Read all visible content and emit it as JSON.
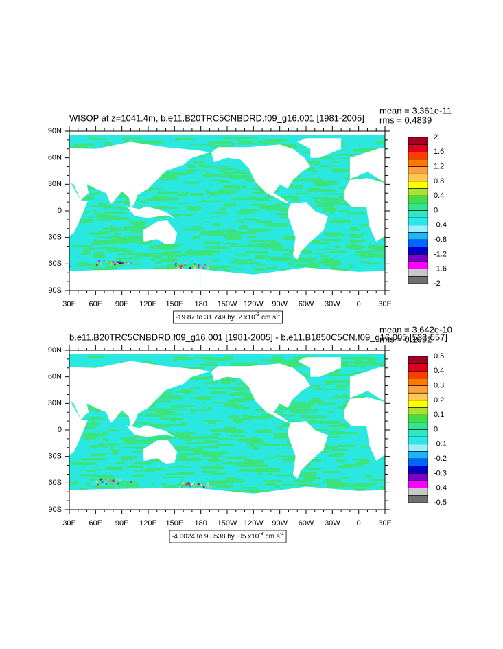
{
  "panels": [
    {
      "title": "WISOP at z=1041.4m, b.e11.B20TRC5CNBDRD.f09_g16.001 [1981-2005]",
      "stats": [
        "mean = 3.361e-11",
        "rms = 0.4839"
      ],
      "lat_labels": [
        "90N",
        "60N",
        "30N",
        "0",
        "30S",
        "60S",
        "90S"
      ],
      "lon_labels": [
        "30E",
        "60E",
        "90E",
        "120E",
        "150E",
        "180",
        "150W",
        "120W",
        "90W",
        "60W",
        "30W",
        "0",
        "30E"
      ],
      "colorbar_labels": [
        "2",
        "1.6",
        "1.2",
        "0.8",
        "0.4",
        "0",
        "-0.4",
        "-0.8",
        "-1.2",
        "-1.6",
        "-2"
      ],
      "range": {
        "text": "-19.87 to 31.749 by .2 x10",
        "exp": "-3",
        "unit": "cm s",
        "unit_exp": "-1"
      }
    },
    {
      "title": "b.e11.B20TRC5CNBDRD.f09_g16.001 [1981-2005] - b.e11.B1850C5CN.f09_g16.005 [533-557]",
      "stats": [
        "mean = 3.642e-10",
        "rms = 0.1052"
      ],
      "lat_labels": [
        "90N",
        "60N",
        "30N",
        "0",
        "30S",
        "60S",
        "90S"
      ],
      "lon_labels": [
        "30E",
        "60E",
        "90E",
        "120E",
        "150E",
        "180",
        "150W",
        "120W",
        "90W",
        "60W",
        "30W",
        "0",
        "30E"
      ],
      "colorbar_labels": [
        "0.5",
        "0.4",
        "0.3",
        "0.2",
        "0.1",
        "0",
        "-0.1",
        "-0.2",
        "-0.3",
        "-0.4",
        "-0.5"
      ],
      "range": {
        "text": "-4.0024 to 9.3538 by .05 x10",
        "exp": "-3",
        "unit": "cm s",
        "unit_exp": "-1"
      }
    }
  ]
}
